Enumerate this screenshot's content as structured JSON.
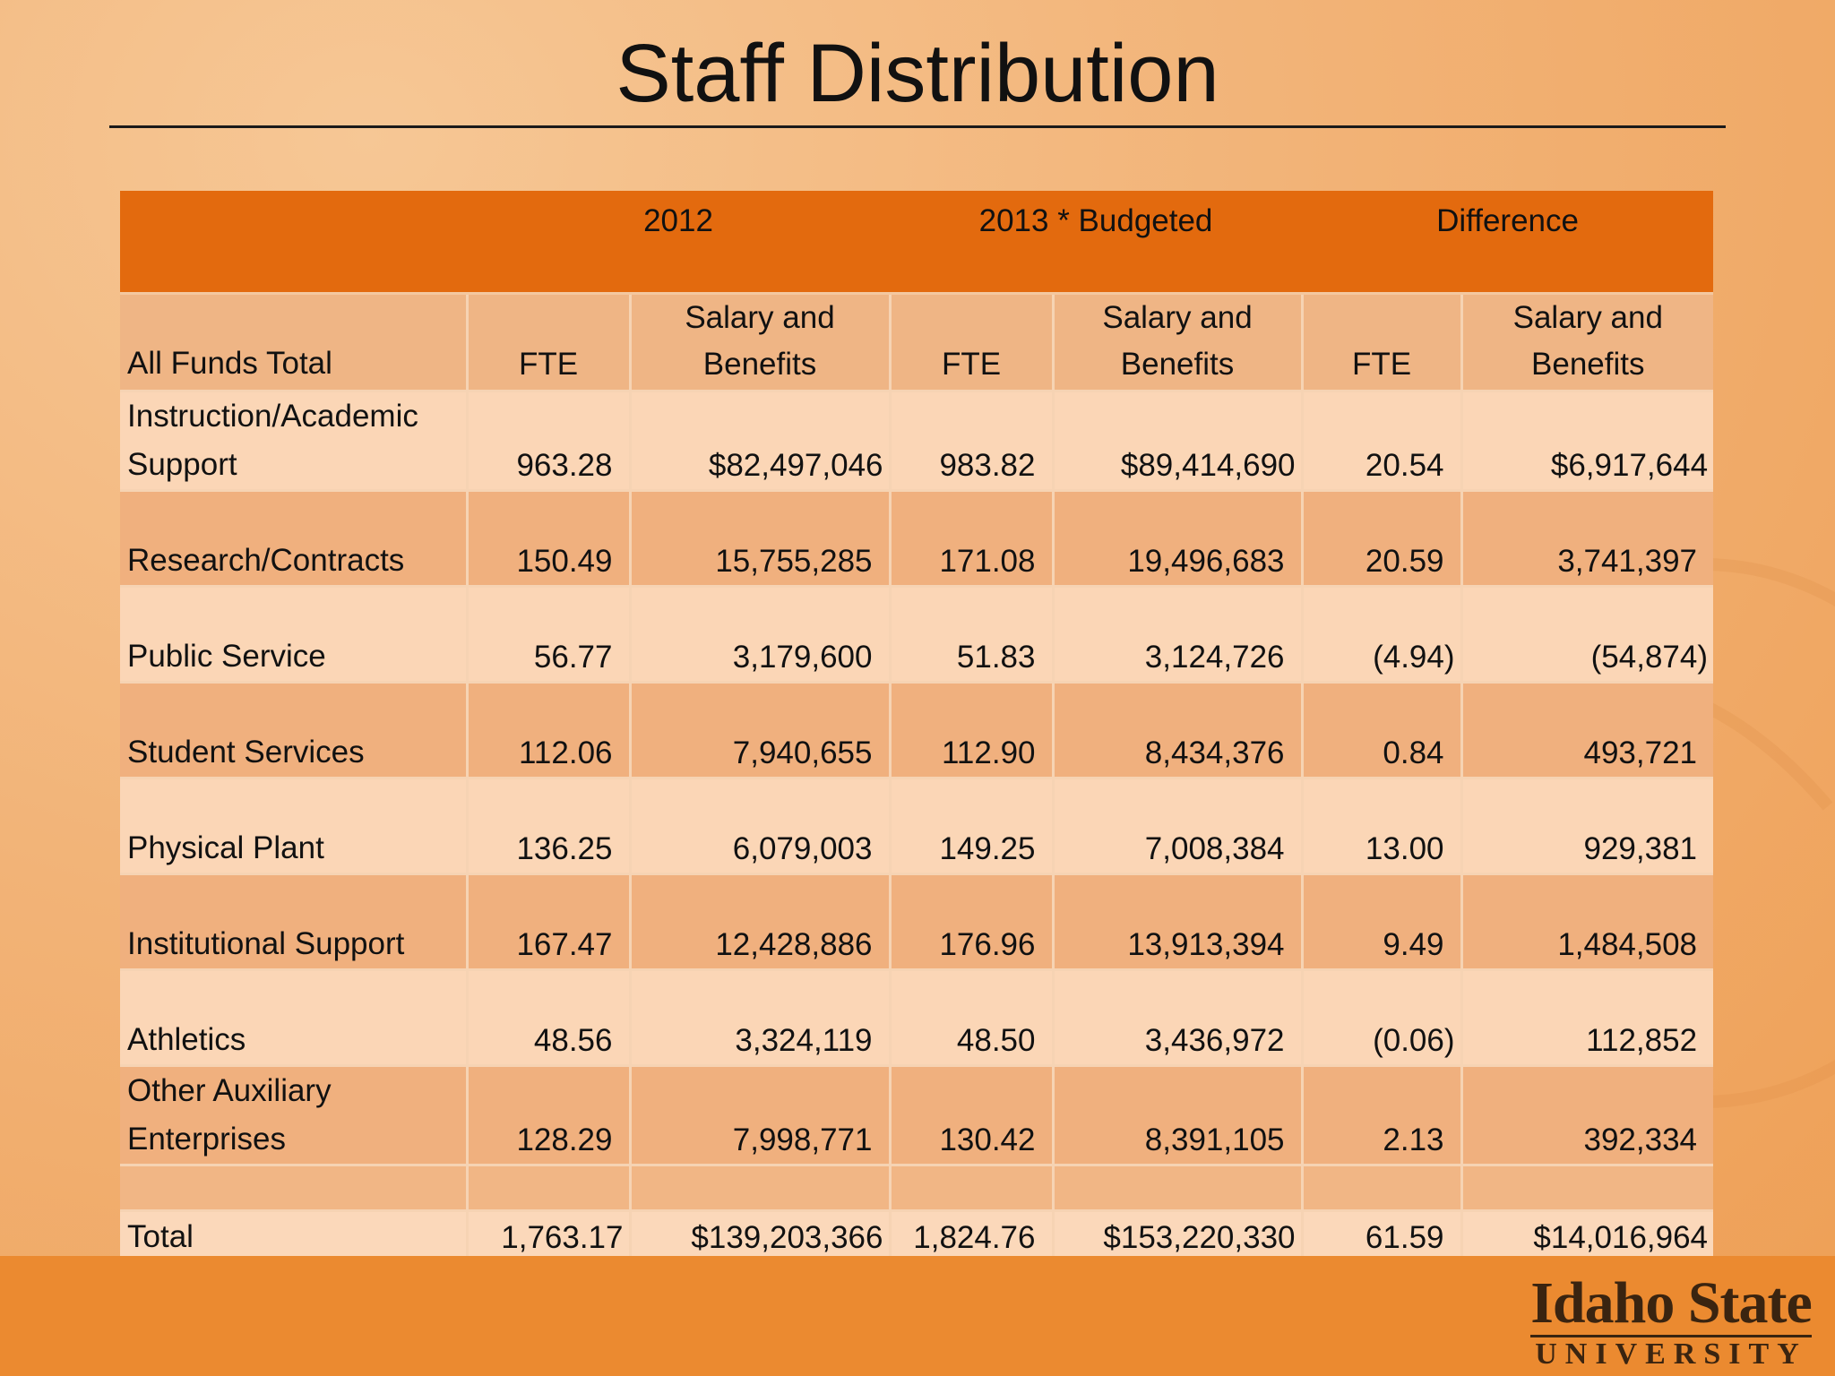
{
  "title": "Staff Distribution",
  "table": {
    "groups": [
      "2012",
      "2013 * Budgeted",
      "Difference"
    ],
    "first_col_header": "All Funds Total",
    "subheaders": [
      "FTE",
      "Salary and Benefits",
      "FTE",
      "Salary and Benefits",
      "FTE",
      "Salary and Benefits"
    ],
    "rows": [
      {
        "label": "Instruction/Academic Support",
        "c1": "963.28",
        "c2": "$82,497,046",
        "c3": "983.82",
        "c4": "$89,414,690",
        "c5": "20.54",
        "c6": "$6,917,644"
      },
      {
        "label": "Research/Contracts",
        "c1": "150.49",
        "c2": "15,755,285",
        "c3": "171.08",
        "c4": "19,496,683",
        "c5": "20.59",
        "c6": "3,741,397"
      },
      {
        "label": "Public Service",
        "c1": "56.77",
        "c2": "3,179,600",
        "c3": "51.83",
        "c4": "3,124,726",
        "c5": "(4.94)",
        "c6": "(54,874)"
      },
      {
        "label": "Student Services",
        "c1": "112.06",
        "c2": "7,940,655",
        "c3": "112.90",
        "c4": "8,434,376",
        "c5": "0.84",
        "c6": "493,721"
      },
      {
        "label": "Physical Plant",
        "c1": "136.25",
        "c2": "6,079,003",
        "c3": "149.25",
        "c4": "7,008,384",
        "c5": "13.00",
        "c6": "929,381"
      },
      {
        "label": "Institutional Support",
        "c1": "167.47",
        "c2": "12,428,886",
        "c3": "176.96",
        "c4": "13,913,394",
        "c5": "9.49",
        "c6": "1,484,508"
      },
      {
        "label": "Athletics",
        "c1": "48.56",
        "c2": "3,324,119",
        "c3": "48.50",
        "c4": "3,436,972",
        "c5": "(0.06)",
        "c6": "112,852"
      },
      {
        "label": "Other Auxiliary Enterprises",
        "c1": "128.29",
        "c2": "7,998,771",
        "c3": "130.42",
        "c4": "8,391,105",
        "c5": "2.13",
        "c6": "392,334"
      }
    ],
    "total": {
      "label": "Total",
      "c1": "1,763.17",
      "c2": "$139,203,366",
      "c3": "1,824.76",
      "c4": "$153,220,330",
      "c5": "61.59",
      "c6": "$14,016,964"
    }
  },
  "logo": {
    "main": "Idaho State",
    "sub": "UNIVERSITY"
  }
}
